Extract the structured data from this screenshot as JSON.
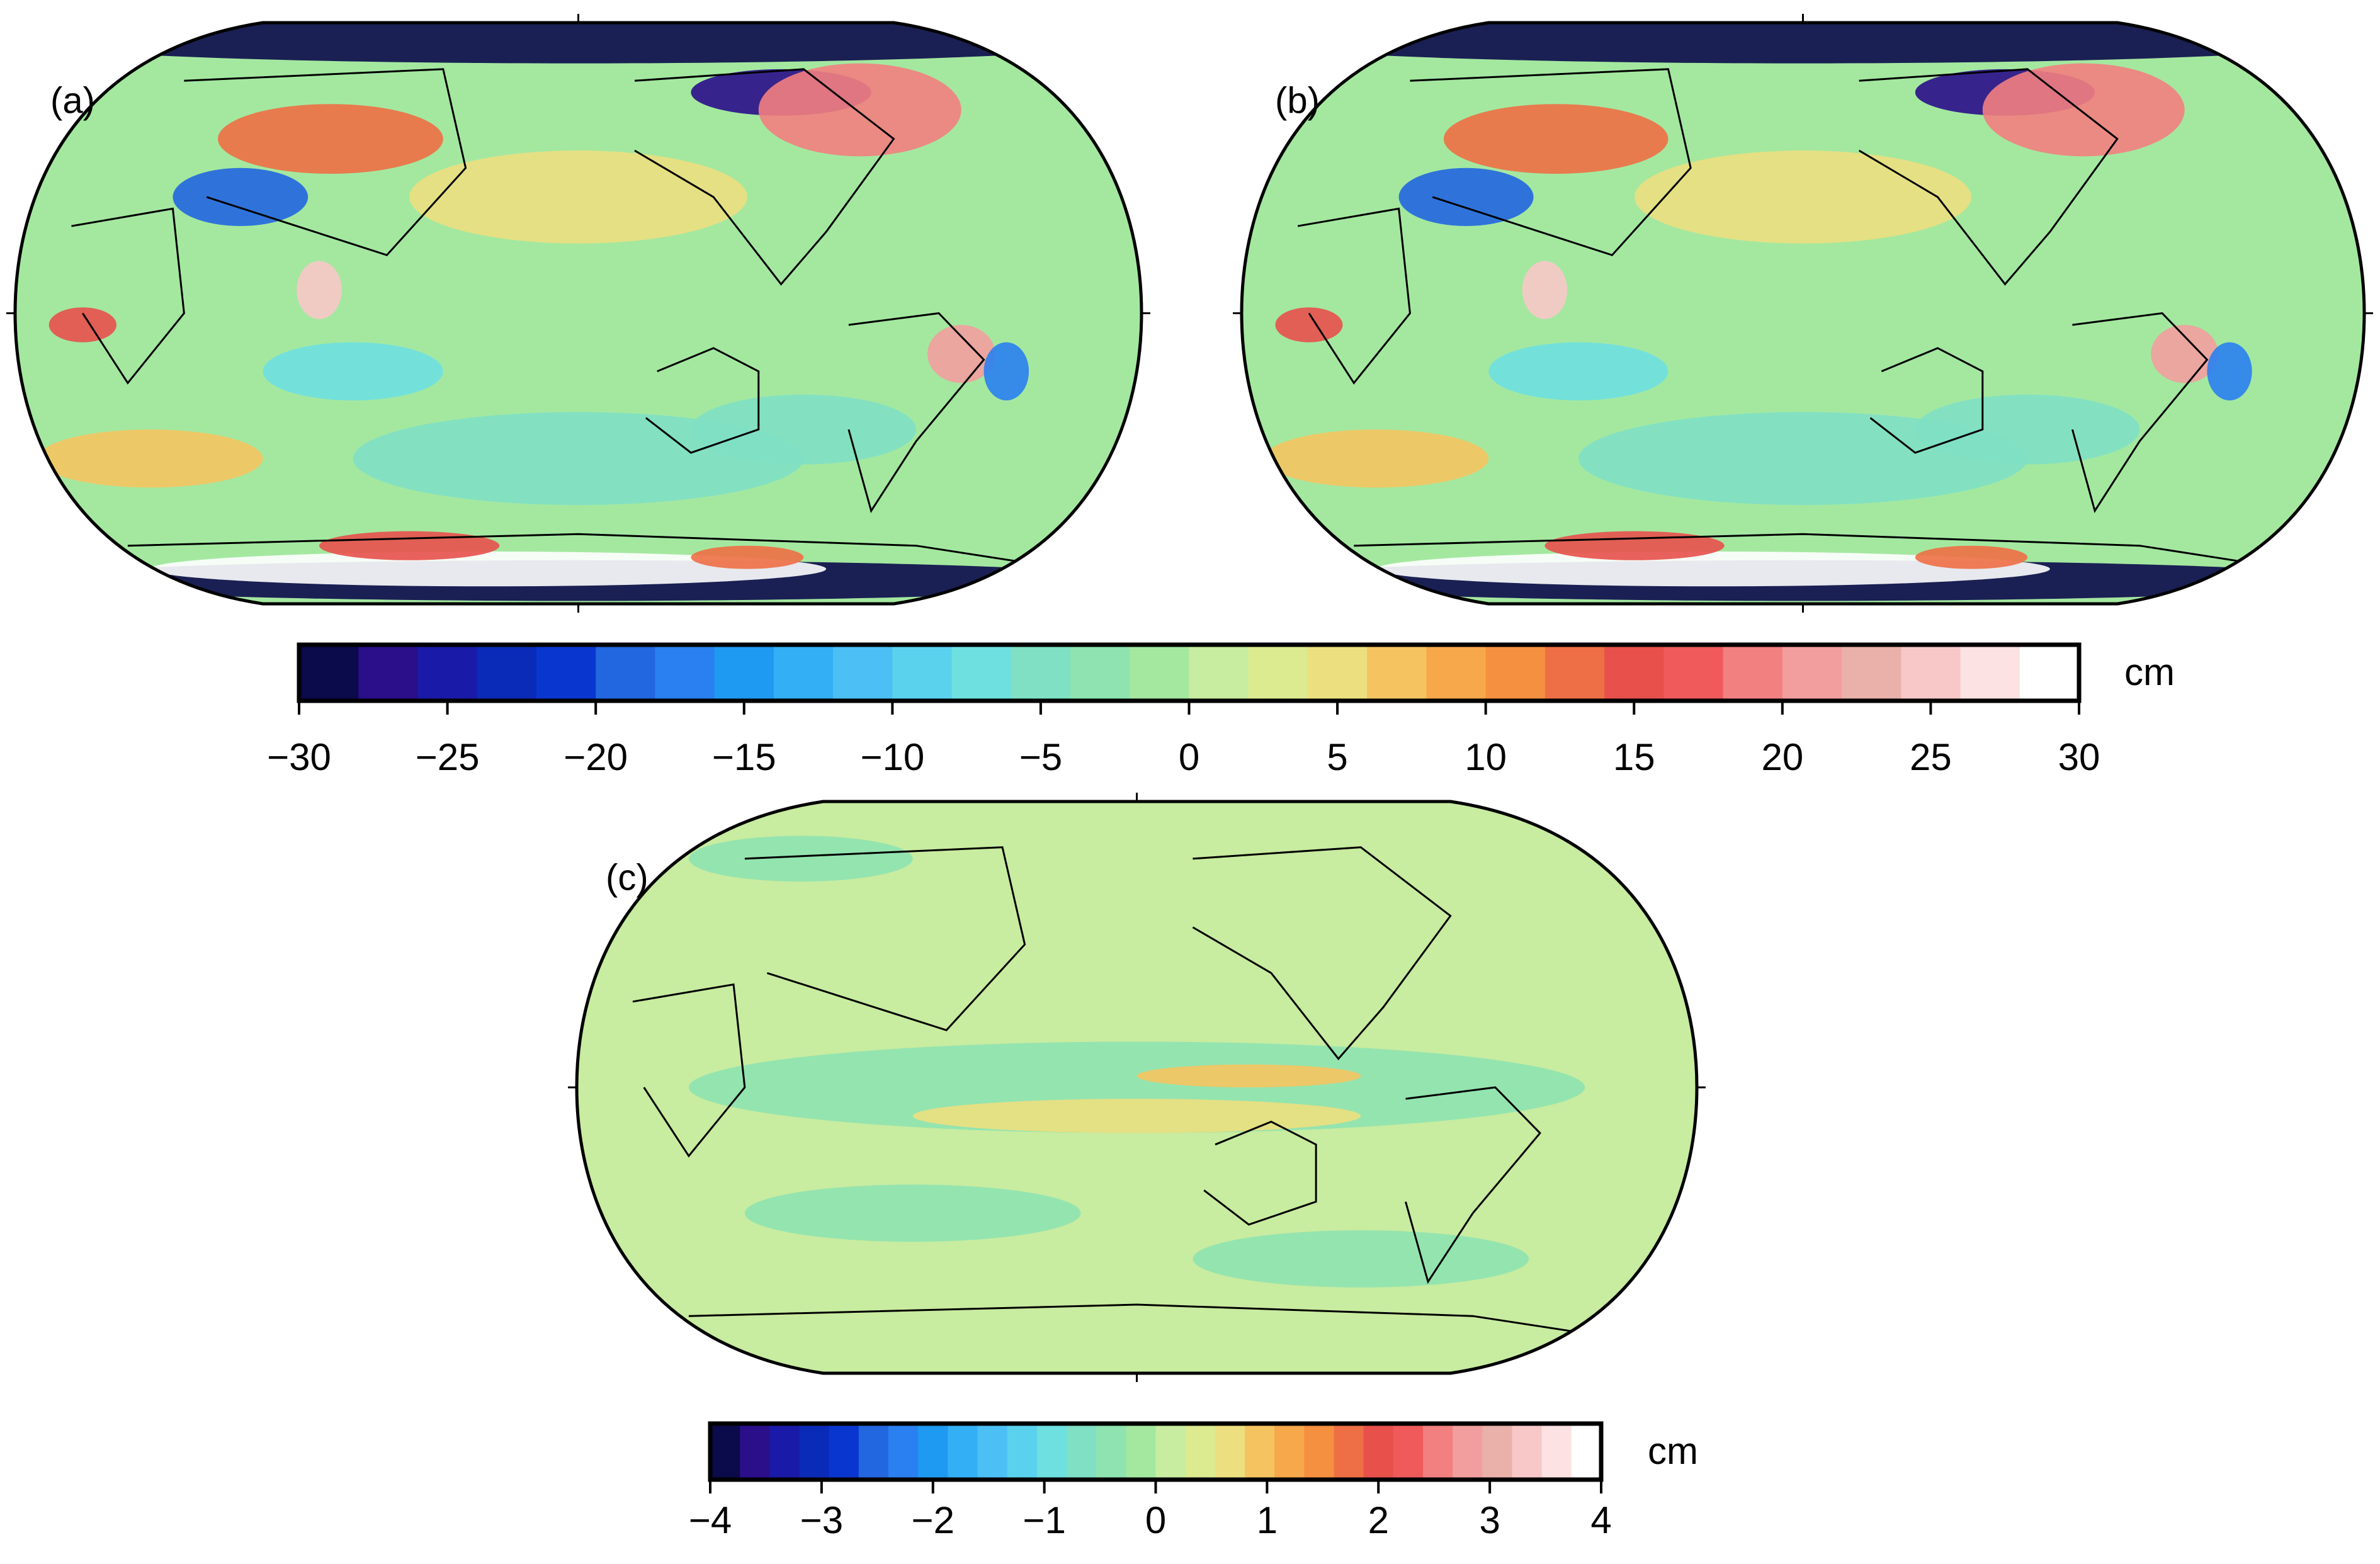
{
  "panels": [
    {
      "label": "(a)"
    },
    {
      "label": "(b)"
    },
    {
      "label": "(c)"
    }
  ],
  "palette": [
    "#0b0a4a",
    "#2a0e8a",
    "#1a1aa8",
    "#0a2ab8",
    "#0a36d0",
    "#2266e0",
    "#2a80f0",
    "#1f9af2",
    "#33b0f5",
    "#4cc0f5",
    "#5ad2ee",
    "#6ee0e0",
    "#7fe0c4",
    "#8ee3b0",
    "#a4e8a0",
    "#c8eca0",
    "#dcea90",
    "#ecdf7f",
    "#f5c460",
    "#f7a84a",
    "#f59040",
    "#ee6f45",
    "#e8504b",
    "#f05a5a",
    "#f28080",
    "#f29e9e",
    "#eab0aa",
    "#f8c8c8",
    "#fce2e2",
    "#ffffff"
  ],
  "colorbars": [
    {
      "unit": "cm",
      "lim": [
        -30,
        30
      ],
      "ticks": [
        {
          "value": -30,
          "label": "−30"
        },
        {
          "value": -25,
          "label": "−25"
        },
        {
          "value": -20,
          "label": "−20"
        },
        {
          "value": -15,
          "label": "−15"
        },
        {
          "value": -10,
          "label": "−10"
        },
        {
          "value": -5,
          "label": "−5"
        },
        0,
        5,
        10,
        15,
        20,
        25,
        30
      ]
    },
    {
      "unit": "cm",
      "lim": [
        -4,
        4
      ],
      "ticks": [
        {
          "value": -4,
          "label": "−4"
        },
        {
          "value": -3,
          "label": "−3"
        },
        {
          "value": -2,
          "label": "−2"
        },
        {
          "value": -1,
          "label": "−1"
        },
        0,
        1,
        2,
        3,
        4
      ]
    }
  ]
}
